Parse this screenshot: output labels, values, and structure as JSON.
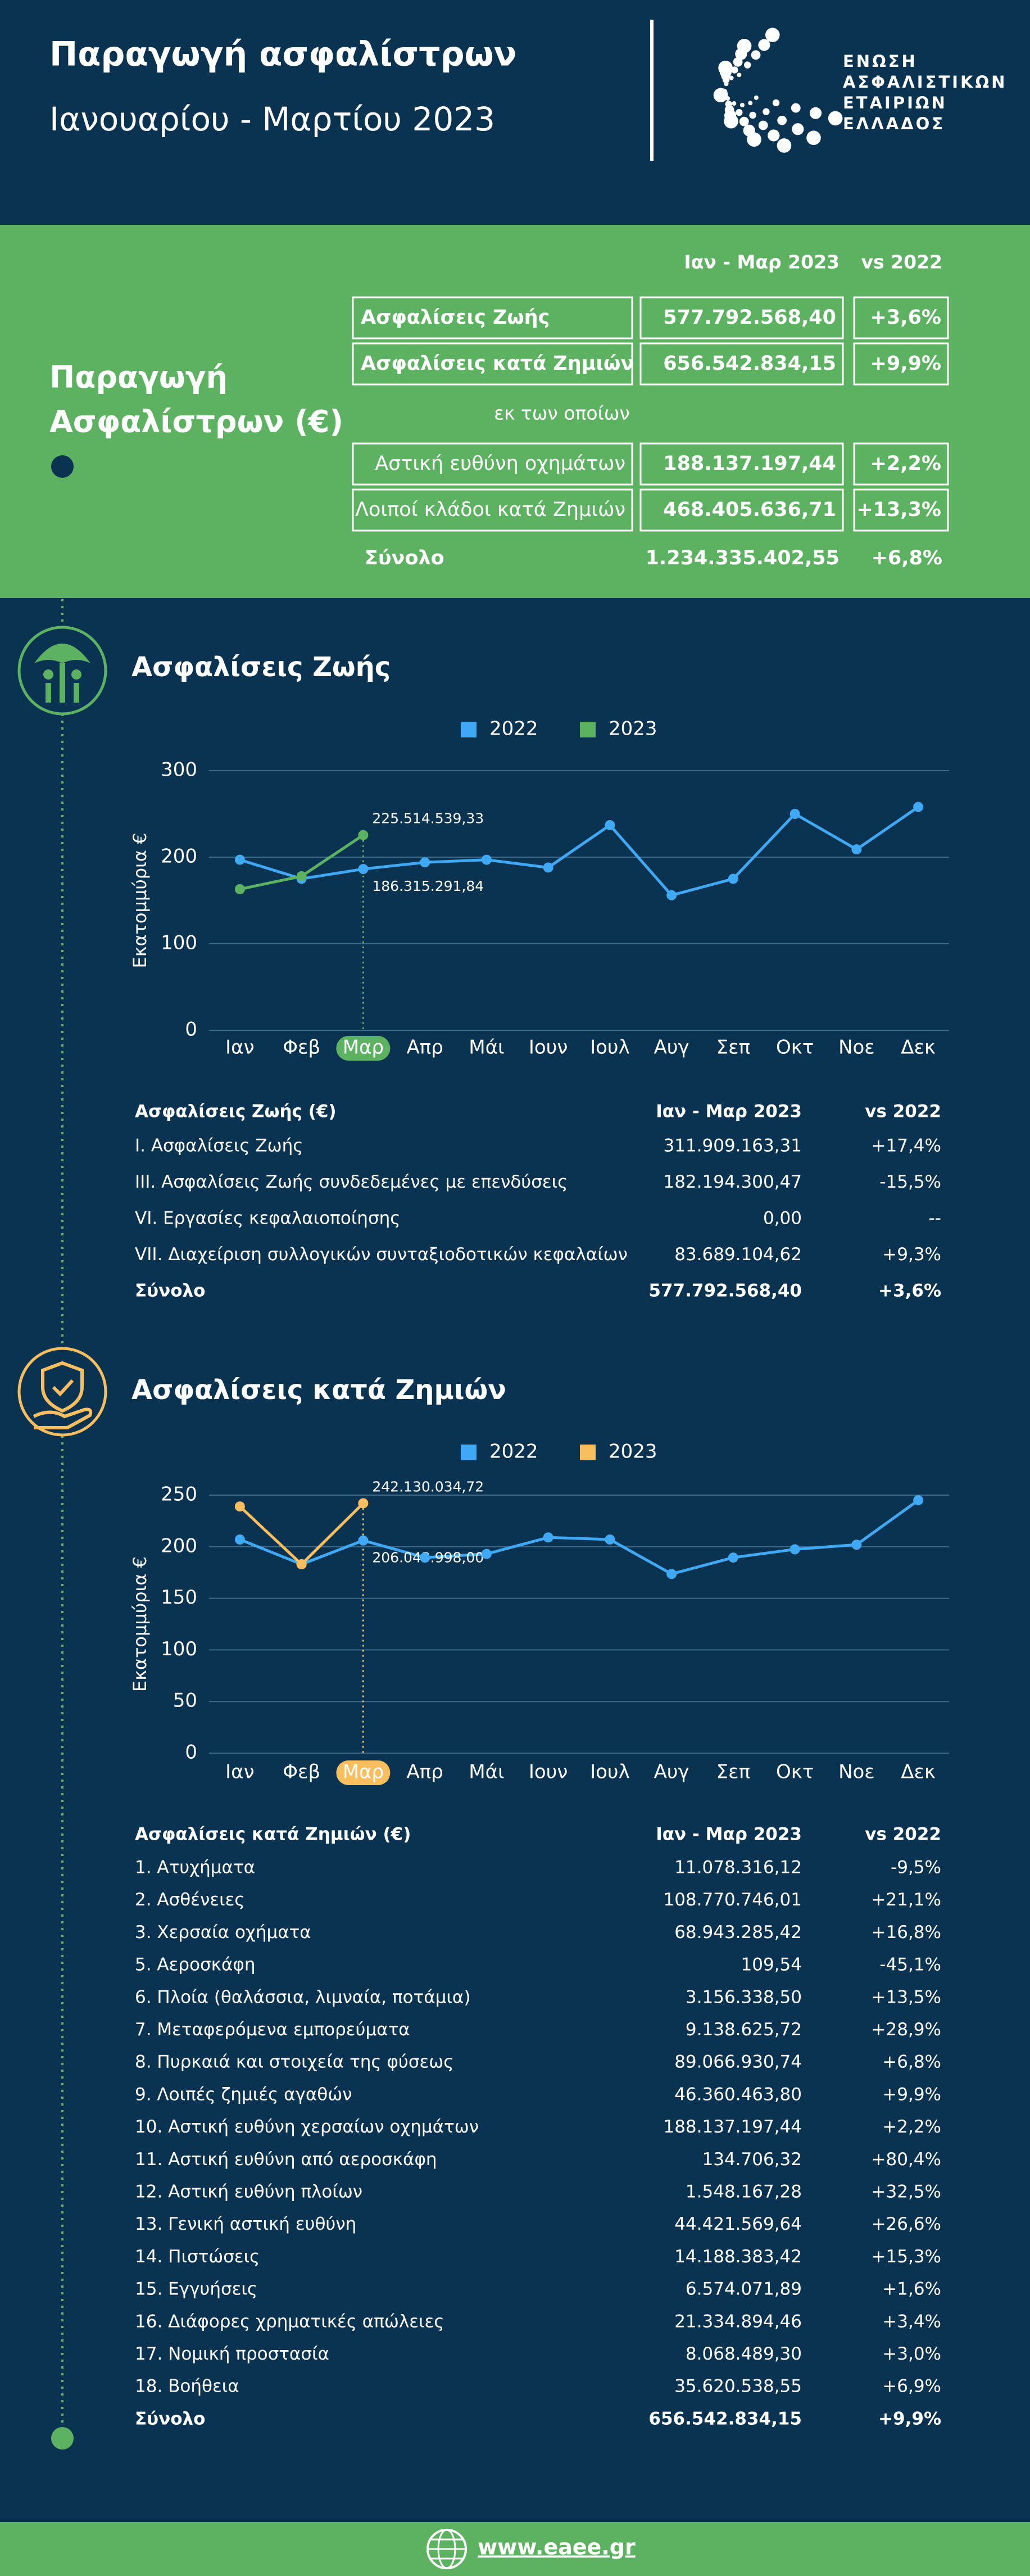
{
  "header": {
    "title": "Παραγωγή ασφαλίστρων",
    "subtitle": "Ιανουαρίου - Μαρτίου 2023",
    "logo_lines": [
      "ΕΝΩΣΗ",
      "ΑΣΦΑΛΙΣΤΙΚΩΝ",
      "ΕΤΑΙΡΙΩΝ",
      "ΕΛΛΑΔΟΣ"
    ]
  },
  "summary": {
    "title_lines": [
      "Παραγωγή",
      "Ασφαλίστρων (€)"
    ],
    "columns": [
      "Ιαν - Μαρ 2023",
      "vs 2022"
    ],
    "rows": [
      [
        "Ασφαλίσεις Ζωής",
        "577.792.568,40",
        "+3,6%"
      ],
      [
        "Ασφαλίσεις κατά Ζημιών",
        "656.542.834,15",
        "+9,9%"
      ],
      [
        "Αστική ευθύνη οχημάτων",
        "188.137.197,44",
        "+2,2%"
      ],
      [
        "Λοιποί κλάδοι κατά Ζημιών",
        "468.405.636,71",
        "+13,3%"
      ]
    ],
    "subnote": "εκ των οποίων",
    "total": [
      "Σύνολο",
      "1.234.335.402,55",
      "+6,8%"
    ]
  },
  "chart_data": [
    {
      "type": "line",
      "title": "Ασφαλίσεις Ζωής",
      "y_label": "Εκατομμύρια €",
      "categories": [
        "Ιαν",
        "Φεβ",
        "Μαρ",
        "Απρ",
        "Μάι",
        "Ιουν",
        "Ιουλ",
        "Αυγ",
        "Σεπ",
        "Οκτ",
        "Νοε",
        "Δεκ"
      ],
      "series": [
        {
          "name": "2022",
          "color": "#3fa9f5",
          "values": [
            197,
            175,
            186.31529184,
            194,
            197,
            188,
            237,
            156,
            175,
            250,
            209,
            258
          ],
          "value_labels": [
            null,
            null,
            "186.315.291,84",
            null,
            null,
            null,
            null,
            null,
            null,
            null,
            null,
            null
          ]
        },
        {
          "name": "2023",
          "color": "#5db262",
          "values": [
            163,
            178,
            225.51453933,
            null,
            null,
            null,
            null,
            null,
            null,
            null,
            null,
            null
          ],
          "value_labels": [
            null,
            null,
            "225.514.539,33",
            null,
            null,
            null,
            null,
            null,
            null,
            null,
            null,
            null
          ]
        }
      ],
      "ylim": [
        0,
        300
      ],
      "yticks": [
        0,
        100,
        200,
        300
      ],
      "grid": true,
      "legend": "top"
    },
    {
      "type": "line",
      "title": "Ασφαλίσεις κατά Ζημιών",
      "y_label": "Εκατομμύρια €",
      "categories": [
        "Ιαν",
        "Φεβ",
        "Μαρ",
        "Απρ",
        "Μάι",
        "Ιουν",
        "Ιουλ",
        "Αυγ",
        "Σεπ",
        "Οκτ",
        "Νοε",
        "Δεκ"
      ],
      "series": [
        {
          "name": "2022",
          "color": "#3fa9f5",
          "values": [
            207,
            183,
            206.043998,
            189.5,
            193,
            209,
            207,
            173.6,
            189.5,
            197.5,
            202,
            245
          ],
          "value_labels": [
            null,
            null,
            "206.043.998,00",
            null,
            null,
            null,
            null,
            null,
            null,
            null,
            null,
            null
          ]
        },
        {
          "name": "2023",
          "color": "#f9bf5e",
          "values": [
            239,
            183,
            242.13003472,
            null,
            null,
            null,
            null,
            null,
            null,
            null,
            null,
            null
          ],
          "value_labels": [
            null,
            null,
            "242.130.034,72",
            null,
            null,
            null,
            null,
            null,
            null,
            null,
            null,
            null
          ]
        }
      ],
      "ylim": [
        0,
        250
      ],
      "yticks": [
        0,
        50,
        100,
        150,
        200,
        250
      ],
      "grid": true,
      "legend": "top"
    }
  ],
  "life_table": {
    "columns": [
      "Ασφαλίσεις Ζωής (€)",
      "Ιαν - Μαρ 2023",
      "vs 2022"
    ],
    "rows": [
      [
        "I. Ασφαλίσεις  Ζωής",
        "311.909.163,31",
        "+17,4%"
      ],
      [
        "III. Ασφαλίσεις  Ζωής  συνδεδεμένες με επενδύσεις",
        "182.194.300,47",
        "-15,5%"
      ],
      [
        "VI. Εργασίες κεφαλαιοποίησης",
        "0,00",
        "--"
      ],
      [
        "VII. Διαχείριση συλλογικών συνταξιοδοτικών κεφαλαίων",
        "83.689.104,62",
        "+9,3%"
      ]
    ],
    "total": [
      "Σύνολο",
      "577.792.568,40",
      "+3,6%"
    ]
  },
  "nonlife_table": {
    "columns": [
      "Ασφαλίσεις κατά Ζημιών (€)",
      "Ιαν - Μαρ 2023",
      "vs 2022"
    ],
    "rows": [
      [
        "1. Ατυχήματα",
        "11.078.316,12",
        "-9,5%"
      ],
      [
        "2. Ασθένειες",
        "108.770.746,01",
        "+21,1%"
      ],
      [
        "3. Χερσαία οχήματα",
        "68.943.285,42",
        "+16,8%"
      ],
      [
        "5. Αεροσκάφη",
        "109,54",
        "-45,1%"
      ],
      [
        "6. Πλοία (θαλάσσια, λιμναία, ποτάμια)",
        "3.156.338,50",
        "+13,5%"
      ],
      [
        "7. Μεταφερόμενα εμπορεύματα",
        "9.138.625,72",
        "+28,9%"
      ],
      [
        "8. Πυρκαιά και στοιχεία της φύσεως",
        "89.066.930,74",
        "+6,8%"
      ],
      [
        "9. Λοιπές ζημιές αγαθών",
        "46.360.463,80",
        "+9,9%"
      ],
      [
        "10. Αστική ευθύνη χερσαίων οχημάτων",
        "188.137.197,44",
        "+2,2%"
      ],
      [
        "11. Αστική ευθύνη από αεροσκάφη",
        "134.706,32",
        "+80,4%"
      ],
      [
        "12. Αστική ευθύνη πλοίων",
        "1.548.167,28",
        "+32,5%"
      ],
      [
        "13. Γενική αστική ευθύνη",
        "44.421.569,64",
        "+26,6%"
      ],
      [
        "14. Πιστώσεις",
        "14.188.383,42",
        "+15,3%"
      ],
      [
        "15. Εγγυήσεις",
        "6.574.071,89",
        "+1,6%"
      ],
      [
        "16. Διάφορες χρηματικές απώλειες",
        "21.334.894,46",
        "+3,4%"
      ],
      [
        "17. Νομική προστασία",
        "8.068.489,30",
        "+3,0%"
      ],
      [
        "18. Βοήθεια",
        "35.620.538,55",
        "+6,9%"
      ]
    ],
    "total": [
      "Σύνολο",
      "656.542.834,15",
      "+9,9%"
    ]
  },
  "footer": {
    "url": "www.eaee.gr"
  }
}
